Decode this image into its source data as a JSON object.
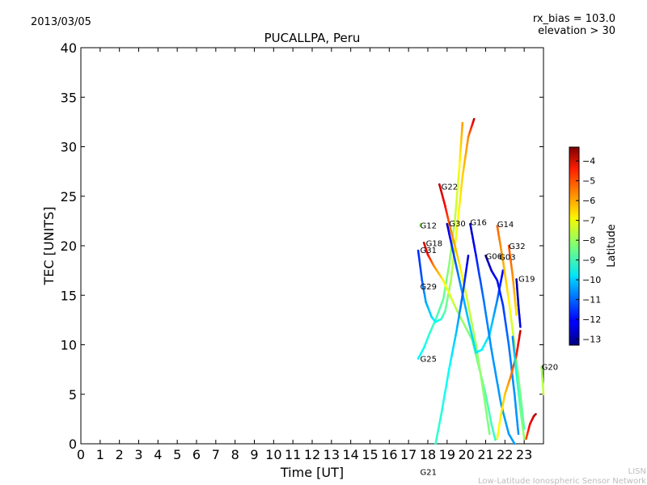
{
  "header": {
    "date": "2013/03/05",
    "rx_bias": "rx_bias = 103.0",
    "elevation": "elevation > 30"
  },
  "credit": {
    "line1": "LISN",
    "line2": "Low-Latitude Ionospheric Sensor Network"
  },
  "chart_data": {
    "type": "scatter",
    "title": "PUCALLPA, Peru",
    "xlabel": "Time [UT]",
    "ylabel": "TEC [UNITS]",
    "xlim": [
      0,
      24
    ],
    "ylim": [
      0,
      40
    ],
    "xticks": [
      0,
      1,
      2,
      3,
      4,
      5,
      6,
      7,
      8,
      9,
      10,
      11,
      12,
      13,
      14,
      15,
      16,
      17,
      18,
      19,
      20,
      21,
      22,
      23
    ],
    "xtick_labels": [
      "0",
      "1",
      "2",
      "3",
      "4",
      "5",
      "6",
      "7",
      "8",
      "9",
      "10",
      "11",
      "12",
      "13",
      "14",
      "15",
      "16",
      "17",
      "18",
      "19",
      "20",
      "21",
      "22",
      "23"
    ],
    "yticks": [
      0,
      5,
      10,
      15,
      20,
      25,
      30,
      35,
      40
    ],
    "ytick_labels": [
      "0",
      "5",
      "10",
      "15",
      "20",
      "25",
      "30",
      "35",
      "40"
    ],
    "colorbar": {
      "label": "Latitude",
      "range": [
        -13.3,
        -3.3
      ],
      "ticks": [
        -4,
        -5,
        -6,
        -7,
        -8,
        -9,
        -10,
        -11,
        -12,
        -13
      ],
      "tick_labels": [
        "−4",
        "−5",
        "−6",
        "−7",
        "−8",
        "−9",
        "−10",
        "−11",
        "−12",
        "−13"
      ]
    },
    "satellite_labels": [
      {
        "name": "G12",
        "x": 17.6,
        "y": 22.1
      },
      {
        "name": "G18",
        "x": 17.9,
        "y": 20.3
      },
      {
        "name": "G31",
        "x": 17.6,
        "y": 19.6
      },
      {
        "name": "G29",
        "x": 17.6,
        "y": 15.9
      },
      {
        "name": "G25",
        "x": 17.6,
        "y": 8.6
      },
      {
        "name": "G21",
        "x": 17.6,
        "y": -2.8
      },
      {
        "name": "G22",
        "x": 18.7,
        "y": 26.0
      },
      {
        "name": "G30",
        "x": 19.1,
        "y": 22.3
      },
      {
        "name": "G16",
        "x": 20.2,
        "y": 22.4
      },
      {
        "name": "G14",
        "x": 21.6,
        "y": 22.2
      },
      {
        "name": "G32",
        "x": 22.2,
        "y": 20.0
      },
      {
        "name": "G06",
        "x": 21.0,
        "y": 19.0
      },
      {
        "name": "G03",
        "x": 21.7,
        "y": 18.9
      },
      {
        "name": "G19",
        "x": 22.7,
        "y": 16.7
      },
      {
        "name": "G20",
        "x": 23.9,
        "y": 7.8
      }
    ],
    "series": [
      {
        "name": "G25-rise",
        "points": [
          [
            17.5,
            8.6,
            -9.6
          ],
          [
            17.8,
            9.7,
            -9.4
          ],
          [
            18.1,
            11.2,
            -9.1
          ],
          [
            18.4,
            12.5,
            -8.9
          ],
          [
            18.8,
            14.6,
            -8.6
          ],
          [
            19.1,
            18.0,
            -8.2
          ],
          [
            19.4,
            22.5,
            -7.7
          ],
          [
            19.6,
            27.0,
            -7.3
          ],
          [
            19.8,
            32.4,
            -6.1
          ]
        ]
      },
      {
        "name": "G29-dip",
        "points": [
          [
            17.5,
            19.5,
            -11.7
          ],
          [
            17.7,
            16.5,
            -11.2
          ],
          [
            17.9,
            14.3,
            -10.4
          ],
          [
            18.2,
            12.8,
            -9.9
          ],
          [
            18.4,
            12.3,
            -9.6
          ],
          [
            18.7,
            12.6,
            -9.1
          ],
          [
            18.9,
            13.4,
            -8.7
          ],
          [
            19.2,
            16.5,
            -7.9
          ],
          [
            19.5,
            21.5,
            -7.2
          ],
          [
            19.8,
            27.0,
            -6.6
          ],
          [
            20.1,
            31.0,
            -5.9
          ],
          [
            20.4,
            32.8,
            -4.0
          ]
        ]
      },
      {
        "name": "G18",
        "points": [
          [
            17.8,
            20.3,
            -4.1
          ],
          [
            18.0,
            19.1,
            -4.6
          ],
          [
            18.3,
            18.0,
            -5.8
          ],
          [
            18.8,
            16.5,
            -6.9
          ],
          [
            19.5,
            13.5,
            -7.8
          ],
          [
            20.3,
            10.5,
            -8.4
          ],
          [
            21.0,
            5.0,
            -8.7
          ],
          [
            21.3,
            2.0,
            -8.9
          ],
          [
            21.5,
            0.4,
            -9.1
          ]
        ]
      },
      {
        "name": "G22",
        "points": [
          [
            18.6,
            26.2,
            -3.9
          ],
          [
            18.9,
            24.0,
            -4.6
          ],
          [
            19.2,
            21.5,
            -5.8
          ],
          [
            19.6,
            18.5,
            -6.7
          ],
          [
            20.0,
            15.0,
            -7.4
          ],
          [
            20.5,
            10.0,
            -8.0
          ],
          [
            20.9,
            5.0,
            -8.2
          ],
          [
            21.2,
            1.0,
            -8.3
          ]
        ]
      },
      {
        "name": "G30",
        "points": [
          [
            19.0,
            22.2,
            -12.6
          ],
          [
            19.3,
            19.5,
            -11.5
          ],
          [
            19.7,
            16.0,
            -10.6
          ],
          [
            20.1,
            12.5,
            -10.1
          ],
          [
            20.5,
            9.2,
            -9.8
          ],
          [
            20.8,
            9.5,
            -9.6
          ],
          [
            21.2,
            11.0,
            -9.9
          ],
          [
            21.6,
            14.5,
            -10.8
          ],
          [
            21.9,
            17.5,
            -12.3
          ]
        ]
      },
      {
        "name": "G21",
        "points": [
          [
            18.4,
            0.0,
            -9.0
          ],
          [
            18.7,
            3.0,
            -9.2
          ],
          [
            19.1,
            7.5,
            -9.5
          ],
          [
            19.5,
            11.5,
            -10.2
          ],
          [
            19.8,
            15.0,
            -11.1
          ],
          [
            20.1,
            19.0,
            -12.4
          ]
        ]
      },
      {
        "name": "G16",
        "points": [
          [
            20.2,
            22.2,
            -12.8
          ],
          [
            20.5,
            19.0,
            -11.8
          ],
          [
            20.9,
            14.5,
            -10.9
          ],
          [
            21.3,
            9.5,
            -10.6
          ],
          [
            21.8,
            4.0,
            -10.5
          ],
          [
            22.2,
            1.0,
            -10.5
          ],
          [
            22.5,
            0.0,
            -10.5
          ]
        ]
      },
      {
        "name": "G06",
        "points": [
          [
            21.0,
            19.0,
            -12.9
          ],
          [
            21.3,
            17.5,
            -12.5
          ],
          [
            21.6,
            16.5,
            -12.0
          ],
          [
            21.9,
            14.0,
            -11.5
          ],
          [
            22.2,
            10.0,
            -10.9
          ],
          [
            22.5,
            5.0,
            -10.6
          ],
          [
            22.7,
            1.0,
            -10.6
          ]
        ]
      },
      {
        "name": "G14",
        "points": [
          [
            21.6,
            22.0,
            -5.5
          ],
          [
            21.9,
            18.5,
            -6.2
          ],
          [
            22.2,
            14.5,
            -7.0
          ],
          [
            22.5,
            10.0,
            -7.8
          ],
          [
            22.8,
            5.0,
            -8.4
          ],
          [
            23.0,
            1.5,
            -8.8
          ]
        ]
      },
      {
        "name": "G32",
        "points": [
          [
            22.2,
            20.0,
            -5.3
          ],
          [
            22.4,
            17.0,
            -5.9
          ],
          [
            22.6,
            13.0,
            -6.8
          ]
        ]
      },
      {
        "name": "G20-rise",
        "points": [
          [
            21.6,
            0.5,
            -7.2
          ],
          [
            21.8,
            3.0,
            -6.9
          ],
          [
            22.0,
            5.0,
            -6.5
          ],
          [
            22.3,
            6.8,
            -5.8
          ],
          [
            22.6,
            9.0,
            -4.9
          ],
          [
            22.8,
            11.4,
            -3.9
          ]
        ]
      },
      {
        "name": "G19",
        "points": [
          [
            22.6,
            16.6,
            -12.9
          ],
          [
            22.7,
            14.0,
            -12.7
          ],
          [
            22.8,
            11.8,
            -12.3
          ]
        ]
      },
      {
        "name": "G19-low",
        "points": [
          [
            22.4,
            10.8,
            -10.8
          ],
          [
            22.6,
            7.0,
            -9.3
          ],
          [
            22.8,
            3.5,
            -8.5
          ],
          [
            23.0,
            0.5,
            -8.1
          ]
        ]
      },
      {
        "name": "G03-tail",
        "points": [
          [
            23.1,
            0.5,
            -5.3
          ],
          [
            23.3,
            2.0,
            -4.5
          ],
          [
            23.5,
            2.8,
            -4.0
          ],
          [
            23.6,
            3.0,
            -3.8
          ]
        ]
      },
      {
        "name": "G20",
        "points": [
          [
            23.9,
            7.8,
            -8.0
          ],
          [
            24.0,
            5.0,
            -7.6
          ]
        ]
      },
      {
        "name": "G12",
        "points": [
          [
            17.6,
            22.0,
            -8.0
          ],
          [
            17.62,
            22.2,
            -8.0
          ]
        ]
      }
    ]
  }
}
